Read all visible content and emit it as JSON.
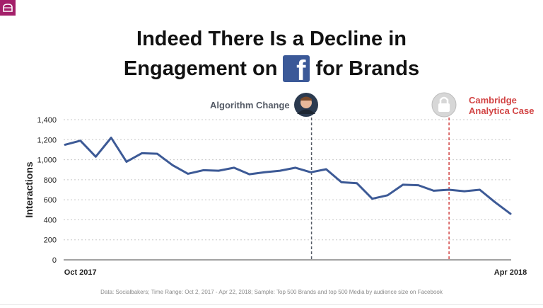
{
  "title_line1": "Indeed There Is a Decline in",
  "title_line2_left": "Engagement on",
  "title_line2_right": "for Brands",
  "icons": {
    "corner": "cake-icon",
    "brand": "facebook-logo",
    "algo": "person-avatar",
    "cambridge": "padlock-icon"
  },
  "annotations": {
    "algorithm_change": "Algorithm Change",
    "cambridge_line1": "Cambridge",
    "cambridge_line2": "Analytica Case"
  },
  "source": "Data: Socialbakers; Time Range: Oct 2, 2017  - Apr 22, 2018; Sample: Top 500 Brands and top 500 Media by audience size on Facebook",
  "colors": {
    "line": "#3d5a96",
    "algo_marker": "#555b66",
    "cambridge_marker": "#d24545",
    "grid": "#c8c8c8",
    "corner": "#a4206a"
  },
  "chart_data": {
    "type": "line",
    "ylabel": "Interactions",
    "xlabel": "",
    "ylim": [
      0,
      1400
    ],
    "yticks": [
      0,
      200,
      400,
      600,
      800,
      1000,
      1200,
      1400
    ],
    "ytick_labels": [
      "0",
      "200",
      "400",
      "600",
      "800",
      "1,000",
      "1,200",
      "1,400"
    ],
    "x_tick_labels": [
      {
        "index": 1,
        "label": "Oct 2017"
      },
      {
        "index": 29,
        "label": "Apr 2018"
      }
    ],
    "grid": true,
    "series": [
      {
        "values": [
          1150,
          1190,
          1030,
          1220,
          980,
          1065,
          1060,
          945,
          860,
          895,
          890,
          920,
          855,
          875,
          890,
          920,
          875,
          905,
          775,
          765,
          610,
          645,
          750,
          745,
          690,
          700,
          685,
          700,
          575,
          460
        ]
      }
    ],
    "markers": [
      {
        "name": "Algorithm Change",
        "index": 16
      },
      {
        "name": "Cambridge Analytica Case",
        "index": 25
      }
    ]
  }
}
